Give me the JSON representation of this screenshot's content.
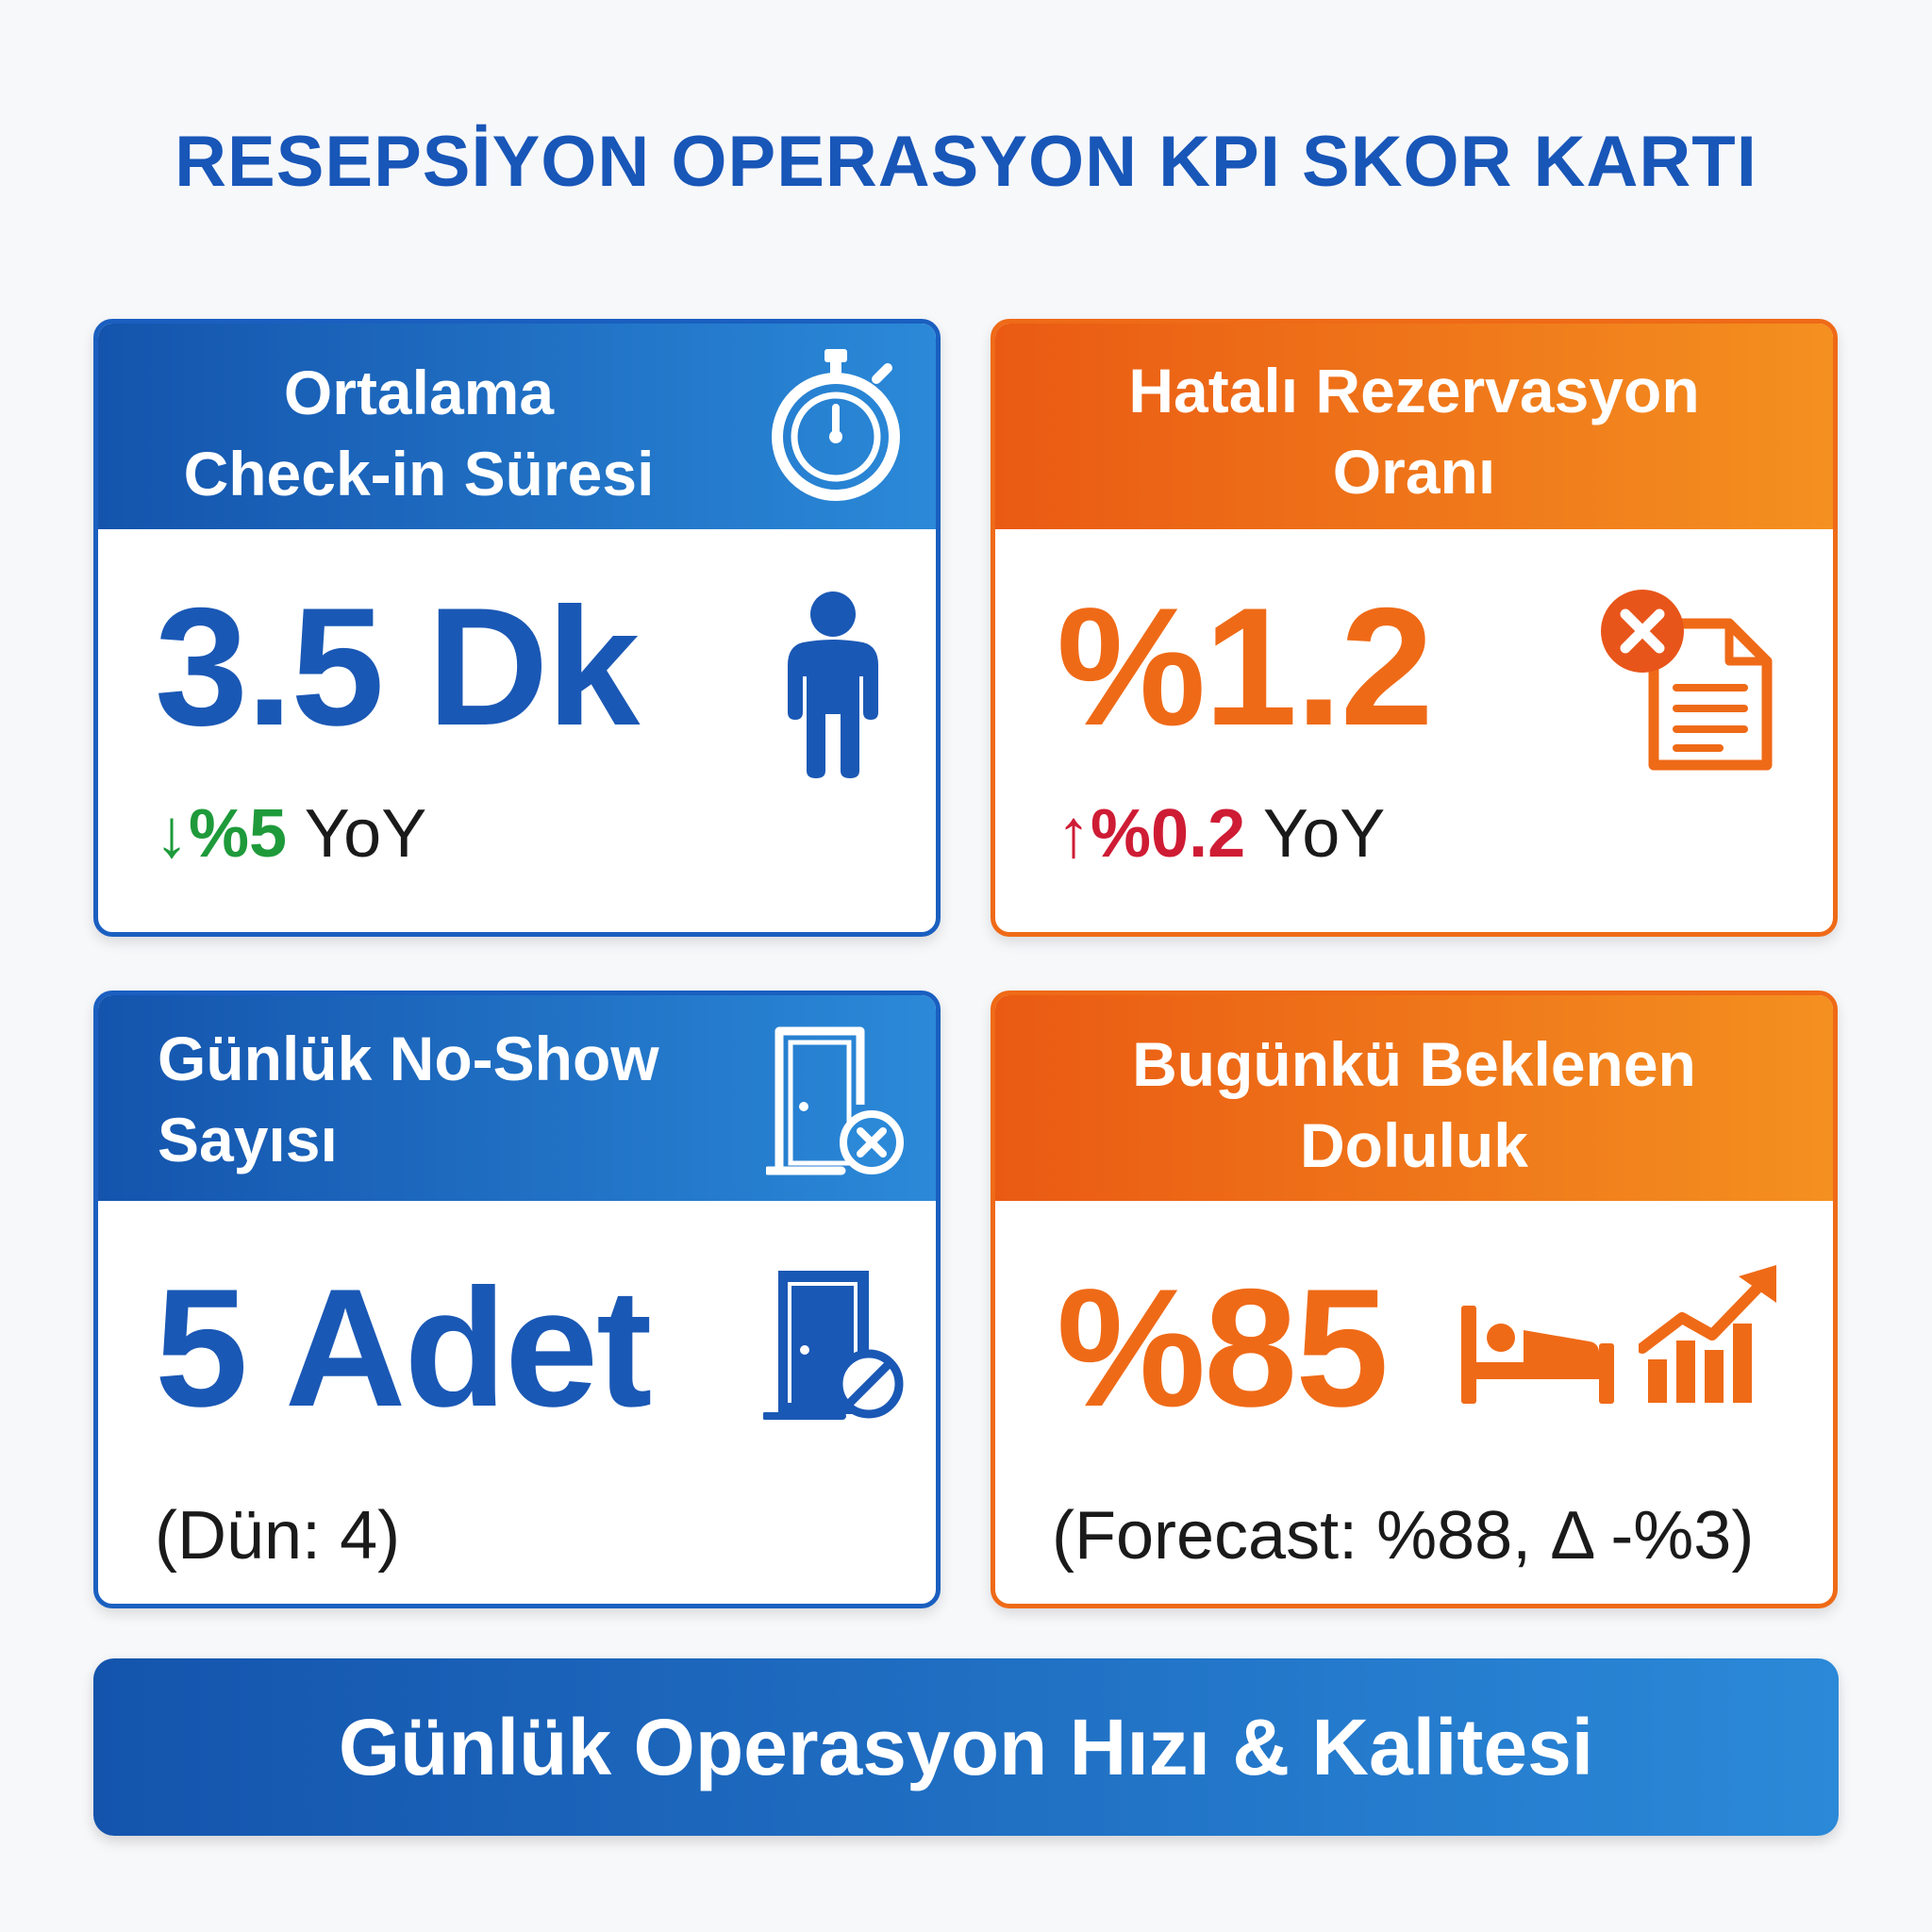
{
  "page": {
    "title": "RESEPSİYON OPERASYON KPI SKOR KARTI"
  },
  "colors": {
    "blue": "#1a5fc0",
    "orange": "#ef6a17",
    "green": "#1e9a3b",
    "red": "#cf1c35"
  },
  "cards": [
    {
      "title_line1": "Ortalama",
      "title_line2": "Check-in Süresi",
      "value": "3.5 Dk",
      "trend_arrow": "↓",
      "trend_value": "%5",
      "trend_suffix": " YoY",
      "header_icon": "stopwatch-icon",
      "body_icon": "person-icon"
    },
    {
      "title_line1": "Hatalı Rezervasyon",
      "title_line2": "Oranı",
      "value": "%1.2",
      "trend_arrow": "↑",
      "trend_value": "%0.2",
      "trend_suffix": " YoY",
      "body_icon": "error-document-icon"
    },
    {
      "title_line1": "Günlük No-Show",
      "title_line2": "Sayısı",
      "value": "5 Adet",
      "note": "(Dün: 4)",
      "header_icon": "door-cancel-icon",
      "body_icon": "door-blocked-icon"
    },
    {
      "title_line1": "Bugünkü Beklenen",
      "title_line2": "Doluluk",
      "value": "%85",
      "note": "(Forecast: %88, Δ -%3)",
      "body_icons": [
        "bed-icon",
        "growth-chart-icon"
      ]
    }
  ],
  "footer": {
    "label": "Günlük Operasyon Hızı & Kalitesi"
  }
}
